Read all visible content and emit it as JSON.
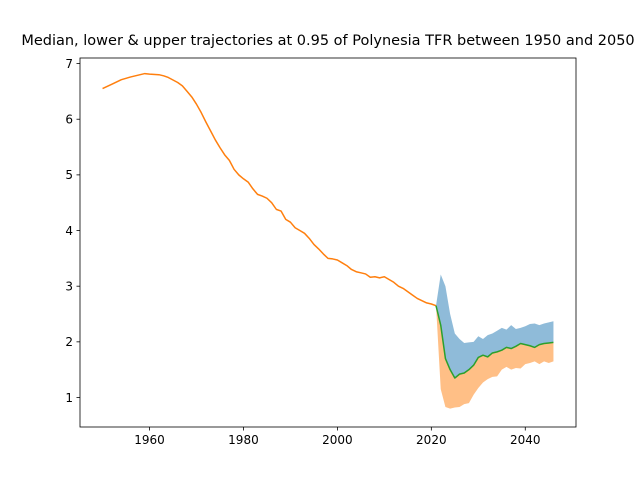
{
  "chart_data": {
    "type": "area",
    "title": "Median, lower & upper trajectories at 0.95 of Polynesia TFR between 1950 and 2050",
    "xlim": [
      1945.2,
      2050.8
    ],
    "ylim": [
      0.47,
      7.1
    ],
    "xticks": [
      1960,
      1980,
      2000,
      2020,
      2040
    ],
    "yticks": [
      1,
      2,
      3,
      4,
      5,
      6,
      7
    ],
    "grid": false,
    "colors": {
      "upper_band": "#1f77b4",
      "lower_band": "#ff7f0e",
      "historical_line": "#ff7f0e",
      "median_line": "#2ca02c",
      "upper_alpha": 0.5,
      "lower_alpha": 0.5
    },
    "historical": {
      "x": [
        1950,
        1952,
        1954,
        1956,
        1958,
        1959,
        1960,
        1962,
        1963,
        1964,
        1966,
        1967,
        1968,
        1969,
        1970,
        1971,
        1972,
        1973,
        1974,
        1975,
        1976,
        1977,
        1978,
        1979,
        1980,
        1981,
        1982,
        1983,
        1984,
        1985,
        1986,
        1987,
        1988,
        1989,
        1990,
        1991,
        1992,
        1993,
        1994,
        1995,
        1996,
        1997,
        1998,
        1999,
        2000,
        2001,
        2002,
        2003,
        2004,
        2005,
        2006,
        2007,
        2008,
        2009,
        2010,
        2011,
        2012,
        2013,
        2014,
        2015,
        2016,
        2017,
        2018,
        2019,
        2020,
        2021
      ],
      "y": [
        6.55,
        6.63,
        6.71,
        6.76,
        6.8,
        6.82,
        6.81,
        6.8,
        6.78,
        6.75,
        6.66,
        6.6,
        6.5,
        6.4,
        6.27,
        6.12,
        5.95,
        5.79,
        5.63,
        5.49,
        5.36,
        5.26,
        5.1,
        5.0,
        4.93,
        4.87,
        4.75,
        4.65,
        4.62,
        4.58,
        4.5,
        4.38,
        4.35,
        4.2,
        4.15,
        4.05,
        4.0,
        3.95,
        3.86,
        3.75,
        3.67,
        3.58,
        3.5,
        3.49,
        3.47,
        3.42,
        3.37,
        3.3,
        3.26,
        3.24,
        3.22,
        3.16,
        3.17,
        3.15,
        3.17,
        3.12,
        3.07,
        3.0,
        2.96,
        2.9,
        2.84,
        2.78,
        2.74,
        2.7,
        2.68,
        2.65
      ]
    },
    "projection": {
      "x": [
        2021,
        2022,
        2023,
        2024,
        2025,
        2026,
        2027,
        2028,
        2029,
        2030,
        2031,
        2032,
        2033,
        2034,
        2035,
        2036,
        2037,
        2038,
        2039,
        2040,
        2041,
        2042,
        2043,
        2044,
        2045,
        2046
      ],
      "median": [
        2.65,
        2.3,
        1.7,
        1.5,
        1.35,
        1.42,
        1.44,
        1.5,
        1.58,
        1.72,
        1.76,
        1.73,
        1.8,
        1.82,
        1.85,
        1.9,
        1.88,
        1.92,
        1.97,
        1.95,
        1.93,
        1.9,
        1.95,
        1.97,
        1.98,
        1.99
      ],
      "lower": [
        2.65,
        1.15,
        0.83,
        0.8,
        0.82,
        0.83,
        0.88,
        0.9,
        1.05,
        1.17,
        1.27,
        1.33,
        1.37,
        1.38,
        1.5,
        1.55,
        1.5,
        1.53,
        1.52,
        1.6,
        1.62,
        1.65,
        1.6,
        1.65,
        1.62,
        1.65
      ],
      "upper": [
        2.65,
        3.21,
        3.0,
        2.5,
        2.15,
        2.05,
        1.98,
        1.99,
        2.0,
        2.1,
        2.05,
        2.12,
        2.15,
        2.2,
        2.25,
        2.22,
        2.3,
        2.23,
        2.25,
        2.28,
        2.32,
        2.33,
        2.3,
        2.33,
        2.35,
        2.37
      ]
    }
  }
}
